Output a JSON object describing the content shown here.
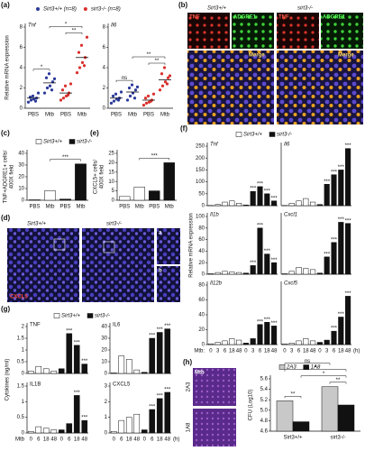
{
  "panels": [
    "(a)",
    "(b)",
    "(c)",
    "(e)",
    "(d)",
    "(f)",
    "(g)",
    "(h)"
  ],
  "images": {
    "b": {
      "columns": [
        "Sirt3+/+",
        "sirt3-/-"
      ],
      "channels": [
        "TNF",
        "ADGRE1",
        "TNF",
        "ADGRE1"
      ],
      "merge": [
        "Merge",
        "Merge"
      ]
    },
    "d": {
      "columns": [
        "Sirt3+/+",
        "sirt3-/-"
      ],
      "stain": "CXCL5",
      "insets": [
        "a",
        "b"
      ]
    },
    "h": {
      "label": "Mtb",
      "rows": [
        "2A3",
        "1A8"
      ]
    }
  },
  "chart_data": [
    {
      "type": "dot",
      "title": "Tnf",
      "ylabel": [
        "Relative mRNA expression"
      ],
      "ylim": [
        0,
        8
      ],
      "yticks": [
        0,
        2,
        4,
        6,
        8
      ],
      "categories": [
        "PBS",
        "Mtb",
        "PBS",
        "Mtb"
      ],
      "series": [
        {
          "name": "Sirt3+/+ (n=8)",
          "color": "#2b3a9a",
          "values": [
            1,
            2.5,
            null,
            null
          ],
          "points": [
            [
              0.6,
              0.8,
              0.9,
              1.0,
              1.1,
              1.2,
              0.7,
              1.5
            ],
            [
              1.5,
              2.0,
              2.2,
              2.6,
              3.0,
              3.4,
              1.8,
              2.9
            ],
            null,
            null
          ]
        },
        {
          "name": "sirt3-/- (n=8)",
          "color": "#d9302c",
          "values": [
            null,
            null,
            1.5,
            5
          ],
          "points": [
            null,
            null,
            [
              0.8,
              1.0,
              1.2,
              1.5,
              1.8,
              2.2,
              1.3,
              2.4
            ],
            [
              3.5,
              4.0,
              4.5,
              5.0,
              5.5,
              6.2,
              4.2,
              7.0
            ]
          ]
        }
      ],
      "brackets": [
        {
          "text": "*",
          "from": 0,
          "to": 1
        },
        {
          "text": "**",
          "from": 2,
          "to": 3
        },
        {
          "text": "*",
          "from": 1,
          "to": 3
        }
      ]
    },
    {
      "type": "dot",
      "title": "Il6",
      "ylim": [
        0,
        8
      ],
      "yticks": [
        0,
        2,
        4,
        6,
        8
      ],
      "categories": [
        "PBS",
        "Mtb",
        "PBS",
        "Mtb"
      ],
      "series": [
        {
          "color": "#2b3a9a",
          "values": [
            1,
            1.6,
            null,
            null
          ],
          "points": [
            [
              0.5,
              0.7,
              0.9,
              1.0,
              1.2,
              1.4,
              0.8,
              1.6
            ],
            [
              0.8,
              1.2,
              1.5,
              1.8,
              2.0,
              2.3,
              1.0,
              2.1
            ],
            null,
            null
          ]
        },
        {
          "color": "#d9302c",
          "values": [
            null,
            null,
            0.8,
            2.8
          ],
          "points": [
            null,
            null,
            [
              0.3,
              0.5,
              0.6,
              0.8,
              1.0,
              1.2,
              0.7,
              1.4
            ],
            [
              1.8,
              2.2,
              2.6,
              3.0,
              3.4,
              4.0,
              2.4,
              3.2
            ]
          ]
        }
      ],
      "brackets": [
        {
          "text": "ns",
          "from": 0,
          "to": 1
        },
        {
          "text": "**",
          "from": 2,
          "to": 3
        },
        {
          "text": "**",
          "from": 1,
          "to": 3
        }
      ]
    },
    {
      "type": "bar",
      "ylabel": [
        "TNF+ADGRE1+ cells/",
        "400X field"
      ],
      "ylim": [
        0,
        40
      ],
      "yticks": [
        0,
        10,
        20,
        30,
        40
      ],
      "categories": [
        "PBS",
        "Mtb",
        "PBS",
        "Mtb"
      ],
      "series": [
        {
          "name": "Sirt3+/+",
          "color": "#ffffff",
          "values": [
            0.5,
            8,
            null,
            null
          ]
        },
        {
          "name": "sirt3-/-",
          "color": "#111111",
          "values": [
            null,
            null,
            1,
            31
          ]
        }
      ],
      "brackets": [
        {
          "text": "***",
          "from": 1,
          "to": 3
        }
      ]
    },
    {
      "type": "bar",
      "ylabel": [
        "CXCL5+ cells/",
        "400X field"
      ],
      "ylim": [
        0,
        25
      ],
      "yticks": [
        0,
        5,
        10,
        15,
        20,
        25
      ],
      "categories": [
        "PBS",
        "Mtb",
        "PBS",
        "Mtb"
      ],
      "series": [
        {
          "color": "#ffffff",
          "values": [
            2,
            7,
            null,
            null
          ]
        },
        {
          "color": "#111111",
          "values": [
            null,
            null,
            5,
            20
          ]
        }
      ],
      "brackets": [
        {
          "text": "***",
          "from": 1,
          "to": 3
        }
      ]
    },
    {
      "type": "bar",
      "title": "Tnf",
      "ylabel": [
        "Relative mRNA expression"
      ],
      "ylim": [
        0,
        250
      ],
      "yticks": [
        0,
        50,
        100,
        150,
        200,
        250
      ],
      "categories": [
        null,
        null,
        null,
        null,
        null,
        null,
        null,
        null,
        null,
        null
      ],
      "series": [
        {
          "name": "Sirt3+/+",
          "color": "#ffffff",
          "values": [
            1,
            5,
            15,
            20,
            10,
            null,
            null,
            null,
            null,
            null
          ]
        },
        {
          "name": "sirt3-/-",
          "color": "#111111",
          "values": [
            null,
            null,
            null,
            null,
            null,
            3,
            60,
            80,
            50,
            20
          ],
          "labels": [
            null,
            null,
            null,
            null,
            null,
            null,
            "***",
            "***",
            "***",
            "***"
          ]
        }
      ]
    },
    {
      "type": "bar",
      "title": "Il6",
      "ylim": [
        0,
        250
      ],
      "categories": [
        null,
        null,
        null,
        null,
        null,
        null,
        null,
        null,
        null,
        null
      ],
      "series": [
        {
          "color": "#ffffff",
          "values": [
            1,
            10,
            20,
            30,
            15,
            null,
            null,
            null,
            null,
            null
          ]
        },
        {
          "color": "#111111",
          "values": [
            null,
            null,
            null,
            null,
            null,
            5,
            90,
            130,
            150,
            240
          ],
          "labels": [
            null,
            null,
            null,
            null,
            null,
            null,
            "***",
            "***",
            "***",
            "***"
          ]
        }
      ]
    },
    {
      "type": "bar",
      "title": "Il1b",
      "ylim": [
        0,
        100
      ],
      "yticks": [
        0,
        20,
        40,
        60,
        80,
        100
      ],
      "categories": [
        null,
        null,
        null,
        null,
        null,
        null,
        null,
        null,
        null,
        null
      ],
      "series": [
        {
          "color": "#ffffff",
          "values": [
            1,
            3,
            5,
            4,
            3,
            null,
            null,
            null,
            null,
            null
          ]
        },
        {
          "color": "#111111",
          "values": [
            null,
            null,
            null,
            null,
            null,
            2,
            15,
            80,
            35,
            20
          ],
          "labels": [
            null,
            null,
            null,
            null,
            null,
            null,
            "***",
            "***",
            "***",
            "***"
          ]
        }
      ]
    },
    {
      "type": "bar",
      "title": "Cxcl1",
      "ylim": [
        0,
        100
      ],
      "categories": [
        null,
        null,
        null,
        null,
        null,
        null,
        null,
        null,
        null,
        null
      ],
      "series": [
        {
          "color": "#ffffff",
          "values": [
            1,
            5,
            12,
            10,
            8,
            null,
            null,
            null,
            null,
            null
          ]
        },
        {
          "color": "#111111",
          "values": [
            null,
            null,
            null,
            null,
            null,
            2,
            30,
            55,
            90,
            88
          ],
          "labels": [
            null,
            null,
            null,
            null,
            null,
            null,
            "***",
            "***",
            "***",
            "***"
          ]
        }
      ]
    },
    {
      "type": "bar",
      "title": "Il12b",
      "xlabel": "Mtb:",
      "ylim": [
        0,
        80
      ],
      "yticks": [
        0,
        20,
        40,
        60,
        80
      ],
      "categories": [
        0,
        3,
        6,
        18,
        48,
        0,
        3,
        6,
        18,
        48
      ],
      "series": [
        {
          "color": "#ffffff",
          "values": [
            1,
            3,
            5,
            8,
            6,
            null,
            null,
            null,
            null,
            null
          ]
        },
        {
          "color": "#111111",
          "values": [
            null,
            null,
            null,
            null,
            null,
            2,
            8,
            27,
            30,
            25
          ],
          "labels": [
            null,
            null,
            null,
            null,
            null,
            null,
            null,
            "***",
            "***",
            "***"
          ]
        }
      ]
    },
    {
      "type": "bar",
      "title": "Cxcl5",
      "xlabel": "(h)",
      "ylim": [
        0,
        80
      ],
      "categories": [
        0,
        3,
        6,
        18,
        48,
        0,
        3,
        6,
        18,
        48
      ],
      "series": [
        {
          "color": "#ffffff",
          "values": [
            1,
            2,
            5,
            8,
            5,
            null,
            null,
            null,
            null,
            null
          ]
        },
        {
          "color": "#111111",
          "values": [
            null,
            null,
            null,
            null,
            null,
            3,
            6,
            18,
            37,
            65
          ],
          "labels": [
            null,
            null,
            null,
            null,
            null,
            null,
            null,
            "***",
            "***",
            "***"
          ]
        }
      ]
    },
    {
      "type": "bar",
      "title": "TNF",
      "ylabel": [
        "Cytokines (ng/ml)"
      ],
      "ylim": [
        0,
        2
      ],
      "yticks": [
        0,
        0.5,
        1,
        1.5,
        2
      ],
      "categories": [
        null,
        null,
        null,
        null,
        null,
        null,
        null,
        null
      ],
      "series": [
        {
          "name": "Sirt3+/+",
          "color": "#ffffff",
          "values": [
            0.1,
            0.3,
            0.2,
            0.1,
            null,
            null,
            null,
            null
          ]
        },
        {
          "name": "sirt3-/-",
          "color": "#111111",
          "values": [
            null,
            null,
            null,
            null,
            0.2,
            1.7,
            1.2,
            0.4
          ],
          "labels": [
            null,
            null,
            null,
            null,
            null,
            "***",
            "***",
            "***"
          ]
        }
      ]
    },
    {
      "type": "bar",
      "title": "IL6",
      "ylim": [
        0,
        40
      ],
      "yticks": [
        0,
        10,
        20,
        30,
        40
      ],
      "categories": [
        null,
        null,
        null,
        null,
        null,
        null,
        null,
        null
      ],
      "series": [
        {
          "color": "#ffffff",
          "values": [
            0.5,
            15,
            12,
            3,
            null,
            null,
            null,
            null
          ]
        },
        {
          "color": "#111111",
          "values": [
            null,
            null,
            null,
            null,
            1,
            30,
            35,
            38
          ],
          "labels": [
            null,
            null,
            null,
            null,
            null,
            "***",
            "***",
            "***"
          ]
        }
      ]
    },
    {
      "type": "bar",
      "title": "IL1B",
      "xlabel": "Mtb",
      "ylim": [
        0,
        1.5
      ],
      "yticks": [
        0,
        0.5,
        1,
        1.5
      ],
      "categories": [
        0,
        6,
        18,
        48,
        0,
        6,
        18,
        48
      ],
      "series": [
        {
          "color": "#ffffff",
          "values": [
            0.05,
            0.2,
            0.15,
            0.1,
            null,
            null,
            null,
            null
          ]
        },
        {
          "color": "#111111",
          "values": [
            null,
            null,
            null,
            null,
            0.1,
            0.3,
            1.2,
            0.4
          ],
          "labels": [
            null,
            null,
            null,
            null,
            null,
            null,
            "***",
            "***"
          ]
        }
      ]
    },
    {
      "type": "bar",
      "title": "CXCL5",
      "xlabel": "(h)",
      "ylim": [
        0,
        3
      ],
      "yticks": [
        0,
        1,
        2,
        3
      ],
      "categories": [
        0,
        6,
        18,
        48,
        0,
        6,
        18,
        48
      ],
      "series": [
        {
          "color": "#ffffff",
          "values": [
            0.1,
            0.8,
            1,
            1.2,
            null,
            null,
            null,
            null
          ]
        },
        {
          "color": "#111111",
          "values": [
            null,
            null,
            null,
            null,
            0.2,
            1.5,
            2.2,
            2.6
          ],
          "labels": [
            null,
            null,
            null,
            null,
            null,
            "***",
            "***",
            "***"
          ]
        }
      ]
    },
    {
      "type": "bar",
      "ylabel": [
        "CFU (Log10)"
      ],
      "ylim": [
        4.6,
        5.6
      ],
      "yticks": [
        4.6,
        4.8,
        {
          "value": 5,
          "label": "5.0"
        },
        5.2,
        5.4,
        5.6
      ],
      "categories": [
        "Sirt3+/+",
        "sirt3-/-"
      ],
      "series": [
        {
          "name": "2A3",
          "color": "#c8c8c8",
          "values": [
            5.18,
            5.45
          ]
        },
        {
          "name": "1A8",
          "color": "#111111",
          "values": [
            4.78,
            5.1
          ]
        }
      ],
      "brackets": [
        {
          "text": "**",
          "from": 0,
          "to": 1
        },
        {
          "text": "**",
          "from": 2,
          "to": 3
        },
        {
          "text": "*",
          "from": 1,
          "to": 3
        },
        {
          "text": "*",
          "from": 0,
          "to": 3
        },
        {
          "text": "ns",
          "from": 0,
          "to": 2
        }
      ]
    }
  ]
}
